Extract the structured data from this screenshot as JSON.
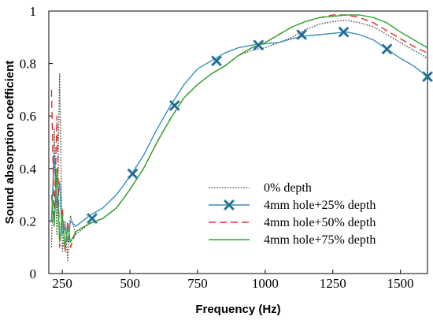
{
  "chart_data": {
    "type": "line",
    "title": "",
    "xlabel": "Frequency (Hz)",
    "ylabel": "Sound absorption coefficient",
    "xlim": [
      200,
      1600
    ],
    "ylim": [
      0,
      1
    ],
    "x_ticks": [
      250,
      500,
      750,
      1000,
      1250,
      1500
    ],
    "y_ticks": [
      0,
      0.2,
      0.4,
      0.6,
      0.8,
      1
    ],
    "y_tick_labels": [
      "0",
      "0.2",
      "0.4",
      "0.6",
      "0.8",
      "1"
    ],
    "grid": false,
    "legend_position": "bottom-right",
    "series": [
      {
        "name": "0% depth",
        "color": "#444444",
        "style": "dotted",
        "marker": "none",
        "x": [
          210,
          220,
          230,
          240,
          250,
          260,
          270,
          280,
          300,
          350,
          400,
          450,
          500,
          550,
          600,
          650,
          700,
          750,
          800,
          850,
          900,
          950,
          1000,
          1050,
          1100,
          1150,
          1200,
          1250,
          1300,
          1350,
          1400,
          1450,
          1500,
          1550,
          1600
        ],
        "y": [
          0.1,
          0.55,
          0.15,
          0.76,
          0.08,
          0.2,
          0.05,
          0.22,
          0.15,
          0.19,
          0.21,
          0.25,
          0.32,
          0.4,
          0.5,
          0.59,
          0.67,
          0.72,
          0.76,
          0.79,
          0.83,
          0.85,
          0.86,
          0.88,
          0.9,
          0.93,
          0.95,
          0.96,
          0.965,
          0.955,
          0.94,
          0.91,
          0.88,
          0.85,
          0.82
        ]
      },
      {
        "name": "4mm hole+25% depth",
        "color": "#3a8fb8",
        "style": "solid",
        "marker": "x",
        "x": [
          210,
          220,
          230,
          240,
          250,
          260,
          270,
          280,
          300,
          350,
          400,
          450,
          500,
          550,
          600,
          650,
          700,
          750,
          800,
          850,
          900,
          950,
          1000,
          1050,
          1100,
          1150,
          1200,
          1250,
          1300,
          1350,
          1400,
          1450,
          1500,
          1550,
          1600
        ],
        "y": [
          0.2,
          0.45,
          0.25,
          0.35,
          0.15,
          0.18,
          0.12,
          0.2,
          0.18,
          0.22,
          0.25,
          0.3,
          0.37,
          0.45,
          0.55,
          0.64,
          0.72,
          0.78,
          0.81,
          0.84,
          0.86,
          0.87,
          0.875,
          0.88,
          0.895,
          0.905,
          0.91,
          0.915,
          0.92,
          0.91,
          0.89,
          0.855,
          0.82,
          0.79,
          0.75
        ],
        "marker_x": [
          360,
          510,
          665,
          820,
          975,
          1135,
          1290,
          1450,
          1600
        ],
        "marker_y": [
          0.21,
          0.38,
          0.64,
          0.81,
          0.87,
          0.91,
          0.92,
          0.855,
          0.75
        ]
      },
      {
        "name": "4mm hole+50% depth",
        "color": "#e8302a",
        "style": "dashed",
        "marker": "none",
        "x": [
          210,
          220,
          230,
          240,
          250,
          260,
          270,
          280,
          300,
          350,
          400,
          450,
          500,
          550,
          600,
          650,
          700,
          750,
          800,
          850,
          900,
          950,
          1000,
          1050,
          1100,
          1150,
          1200,
          1250,
          1300,
          1350,
          1400,
          1450,
          1500,
          1550,
          1600
        ],
        "y": [
          0.7,
          0.2,
          0.6,
          0.1,
          0.25,
          0.08,
          0.2,
          0.1,
          0.16,
          0.19,
          0.21,
          0.25,
          0.32,
          0.4,
          0.5,
          0.59,
          0.67,
          0.72,
          0.76,
          0.79,
          0.83,
          0.86,
          0.88,
          0.91,
          0.94,
          0.96,
          0.975,
          0.985,
          0.985,
          0.975,
          0.955,
          0.925,
          0.895,
          0.865,
          0.84
        ]
      },
      {
        "name": "4mm hole+75% depth",
        "color": "#2ea82e",
        "style": "solid",
        "marker": "none",
        "x": [
          210,
          220,
          230,
          240,
          250,
          260,
          270,
          280,
          300,
          350,
          400,
          450,
          500,
          550,
          600,
          650,
          700,
          750,
          800,
          850,
          900,
          950,
          1000,
          1050,
          1100,
          1150,
          1200,
          1250,
          1300,
          1350,
          1400,
          1450,
          1500,
          1550,
          1600
        ],
        "y": [
          0.3,
          0.18,
          0.4,
          0.12,
          0.22,
          0.1,
          0.18,
          0.12,
          0.16,
          0.19,
          0.21,
          0.25,
          0.32,
          0.4,
          0.5,
          0.59,
          0.67,
          0.72,
          0.76,
          0.79,
          0.83,
          0.86,
          0.88,
          0.91,
          0.94,
          0.96,
          0.975,
          0.98,
          0.985,
          0.985,
          0.975,
          0.955,
          0.92,
          0.89,
          0.86
        ]
      }
    ]
  }
}
